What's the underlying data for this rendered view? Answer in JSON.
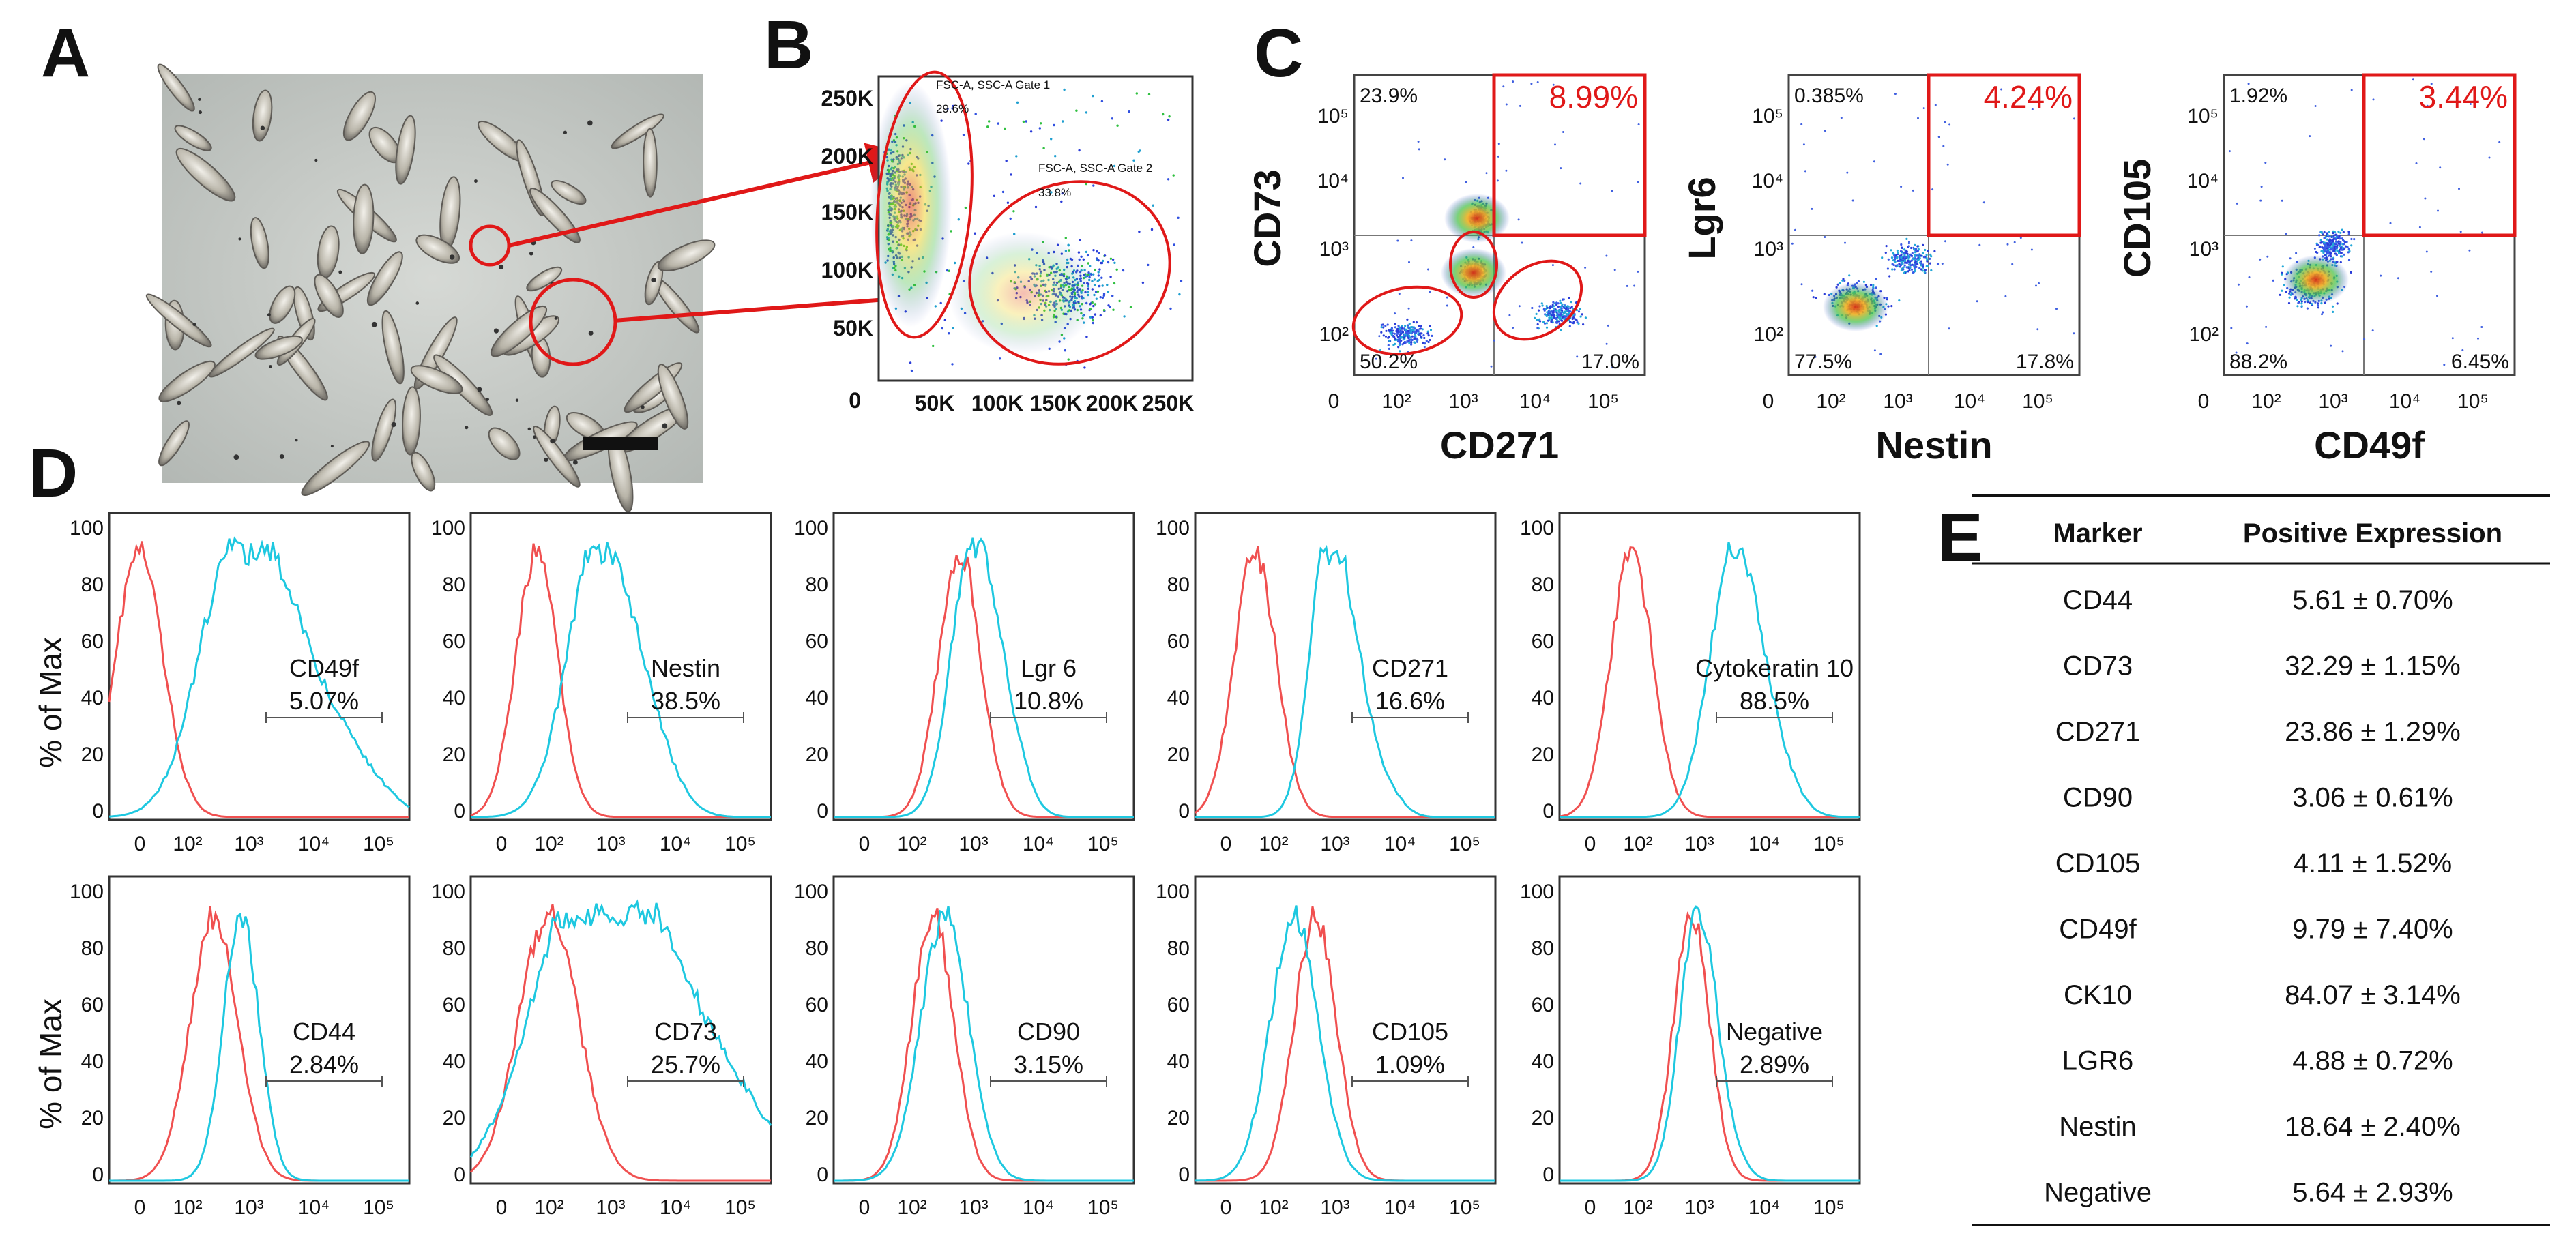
{
  "panel_letters": [
    "A",
    "B",
    "C",
    "D",
    "E"
  ],
  "panel_b": {
    "gate1_label": "FSC-A, SSC-A Gate 1",
    "gate1_pct": "29.6%",
    "gate2_label": "FSC-A, SSC-A Gate 2",
    "gate2_pct": "33.8%",
    "y_ticks": [
      "250K",
      "200K",
      "150K",
      "100K",
      "50K",
      "0"
    ],
    "x_ticks": [
      "50K",
      "100K",
      "150K",
      "200K",
      "250K"
    ]
  },
  "panel_c": {
    "plots": [
      {
        "ylabel": "CD73",
        "xlabel": "CD271",
        "q_ul": "23.9%",
        "q_ur": "8.99%",
        "q_ll": "50.2%",
        "q_lr": "17.0%"
      },
      {
        "ylabel": "Lgr6",
        "xlabel": "Nestin",
        "q_ul": "0.385%",
        "q_ur": "4.24%",
        "q_ll": "77.5%",
        "q_lr": "17.8%"
      },
      {
        "ylabel": "CD105",
        "xlabel": "CD49f",
        "q_ul": "1.92%",
        "q_ur": "3.44%",
        "q_ll": "88.2%",
        "q_lr": "6.45%"
      }
    ],
    "y_ticks": [
      "10⁵",
      "10⁴",
      "10³",
      "10²"
    ],
    "x_ticks": [
      "0",
      "10²",
      "10³",
      "10⁴",
      "10⁵"
    ]
  },
  "panel_d": {
    "ylabel": "% of Max",
    "y_ticks": [
      "100",
      "80",
      "60",
      "40",
      "20",
      "0"
    ],
    "x_ticks": [
      "0",
      "10²",
      "10³",
      "10⁴",
      "10⁵"
    ],
    "row1": [
      {
        "marker": "CD49f",
        "pct": "5.07%"
      },
      {
        "marker": "Nestin",
        "pct": "38.5%"
      },
      {
        "marker": "Lgr 6",
        "pct": "10.8%"
      },
      {
        "marker": "CD271",
        "pct": "16.6%"
      },
      {
        "marker": "Cytokeratin 10",
        "pct": "88.5%"
      }
    ],
    "row2": [
      {
        "marker": "CD44",
        "pct": "2.84%"
      },
      {
        "marker": "CD73",
        "pct": "25.7%"
      },
      {
        "marker": "CD90",
        "pct": "3.15%"
      },
      {
        "marker": "CD105",
        "pct": "1.09%"
      },
      {
        "marker": "Negative",
        "pct": "2.89%"
      }
    ]
  },
  "panel_e": {
    "headers": [
      "Marker",
      "Positive Expression"
    ],
    "rows": [
      [
        "CD44",
        "5.61 ± 0.70%"
      ],
      [
        "CD73",
        "32.29 ± 1.15%"
      ],
      [
        "CD271",
        "23.86 ± 1.29%"
      ],
      [
        "CD90",
        "3.06 ± 0.61%"
      ],
      [
        "CD105",
        "4.11 ± 1.52%"
      ],
      [
        "CD49f",
        "9.79 ± 7.40%"
      ],
      [
        "CK10",
        "84.07 ± 3.14%"
      ],
      [
        "LGR6",
        "4.88 ± 0.72%"
      ],
      [
        "Nestin",
        "18.64 ± 2.40%"
      ],
      [
        "Negative",
        "5.64 ± 2.93%"
      ]
    ]
  },
  "colors": {
    "control": "#f05050",
    "stained": "#1ec8e0",
    "gate": "#e01818",
    "micro_bg": "#c8ccc8"
  }
}
